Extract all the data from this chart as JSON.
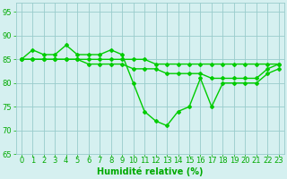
{
  "x": [
    0,
    1,
    2,
    3,
    4,
    5,
    6,
    7,
    8,
    9,
    10,
    11,
    12,
    13,
    14,
    15,
    16,
    17,
    18,
    19,
    20,
    21,
    22,
    23
  ],
  "line1": [
    85,
    87,
    86,
    86,
    88,
    86,
    86,
    86,
    87,
    86,
    80,
    74,
    72,
    71,
    74,
    75,
    81,
    75,
    80,
    80,
    80,
    80,
    82,
    83
  ],
  "line2": [
    85,
    85,
    85,
    85,
    85,
    85,
    84,
    84,
    84,
    84,
    83,
    83,
    83,
    82,
    82,
    82,
    82,
    81,
    81,
    81,
    81,
    81,
    83,
    84
  ],
  "line3": [
    85,
    85,
    85,
    85,
    85,
    85,
    85,
    85,
    85,
    85,
    85,
    85,
    84,
    84,
    84,
    84,
    84,
    84,
    84,
    84,
    84,
    84,
    84,
    84
  ],
  "line_color": "#00cc00",
  "bg_color": "#d5f0f0",
  "grid_color": "#99cccc",
  "xlabel": "Humidité relative (%)",
  "ylim": [
    65,
    97
  ],
  "xlim": [
    -0.5,
    23.5
  ],
  "yticks": [
    65,
    70,
    75,
    80,
    85,
    90,
    95
  ],
  "xticks": [
    0,
    1,
    2,
    3,
    4,
    5,
    6,
    7,
    8,
    9,
    10,
    11,
    12,
    13,
    14,
    15,
    16,
    17,
    18,
    19,
    20,
    21,
    22,
    23
  ],
  "marker": "D",
  "marker_size": 2,
  "line_width": 1.0,
  "xlabel_color": "#00aa00",
  "xlabel_fontsize": 7,
  "tick_color": "#00aa00",
  "tick_fontsize": 6
}
